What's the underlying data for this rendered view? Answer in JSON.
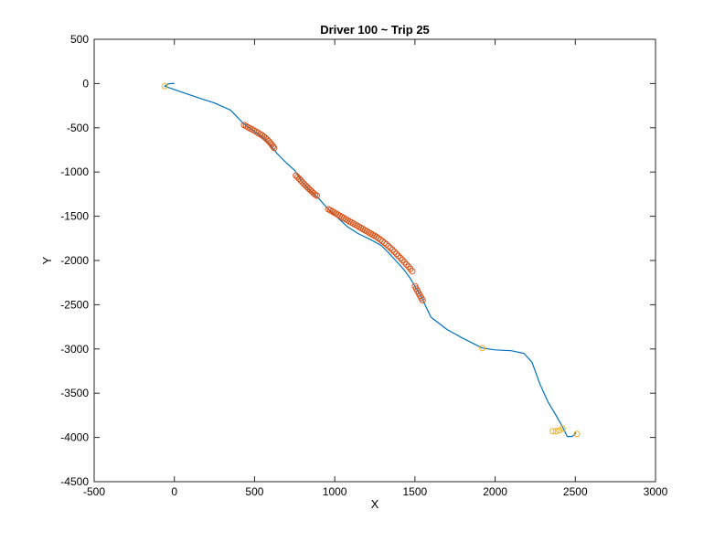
{
  "chart_data": {
    "type": "scatter",
    "title": "Driver 100 ~ Trip 25",
    "xlabel": "X",
    "ylabel": "Y",
    "xlim": [
      -500,
      3000
    ],
    "ylim": [
      -4500,
      500
    ],
    "xticks": [
      -500,
      0,
      500,
      1000,
      1500,
      2000,
      2500,
      3000
    ],
    "yticks": [
      -4500,
      -4000,
      -3500,
      -3000,
      -2500,
      -2000,
      -1500,
      -1000,
      -500,
      0,
      500
    ],
    "grid": false,
    "colors": {
      "path": "#0072bd",
      "orange_markers": "#d95319",
      "yellow_markers": "#edb120"
    },
    "series": [
      {
        "mark": "line",
        "points": [
          [
            0,
            0
          ],
          [
            -20,
            0
          ],
          [
            -40,
            -5
          ],
          [
            -60,
            -30
          ],
          [
            50,
            -100
          ],
          [
            150,
            -160
          ],
          [
            250,
            -220
          ],
          [
            350,
            -300
          ],
          [
            430,
            -450
          ],
          [
            500,
            -540
          ],
          [
            560,
            -620
          ],
          [
            600,
            -700
          ],
          [
            640,
            -790
          ],
          [
            700,
            -900
          ],
          [
            750,
            -980
          ],
          [
            800,
            -1120
          ],
          [
            850,
            -1220
          ],
          [
            900,
            -1300
          ],
          [
            960,
            -1420
          ],
          [
            1020,
            -1520
          ],
          [
            1080,
            -1620
          ],
          [
            1150,
            -1700
          ],
          [
            1220,
            -1760
          ],
          [
            1290,
            -1830
          ],
          [
            1340,
            -1920
          ],
          [
            1380,
            -2000
          ],
          [
            1430,
            -2100
          ],
          [
            1470,
            -2200
          ],
          [
            1510,
            -2320
          ],
          [
            1550,
            -2450
          ],
          [
            1600,
            -2640
          ],
          [
            1700,
            -2780
          ],
          [
            1800,
            -2880
          ],
          [
            1920,
            -2990
          ],
          [
            2000,
            -3010
          ],
          [
            2100,
            -3020
          ],
          [
            2180,
            -3050
          ],
          [
            2230,
            -3150
          ],
          [
            2280,
            -3400
          ],
          [
            2330,
            -3600
          ],
          [
            2380,
            -3750
          ],
          [
            2420,
            -3880
          ],
          [
            2450,
            -3990
          ],
          [
            2480,
            -3990
          ],
          [
            2500,
            -3960
          ],
          [
            2500,
            -3940
          ]
        ]
      },
      {
        "mark": "circle",
        "points": [
          [
            435,
            -470
          ],
          [
            448,
            -482
          ],
          [
            460,
            -495
          ],
          [
            472,
            -507
          ],
          [
            485,
            -518
          ],
          [
            497,
            -530
          ],
          [
            510,
            -545
          ],
          [
            522,
            -558
          ],
          [
            535,
            -572
          ],
          [
            547,
            -585
          ],
          [
            558,
            -600
          ],
          [
            568,
            -615
          ],
          [
            578,
            -632
          ],
          [
            588,
            -650
          ],
          [
            598,
            -670
          ],
          [
            607,
            -690
          ],
          [
            615,
            -710
          ],
          [
            622,
            -728
          ],
          [
            758,
            -1040
          ],
          [
            768,
            -1058
          ],
          [
            778,
            -1076
          ],
          [
            788,
            -1095
          ],
          [
            798,
            -1115
          ],
          [
            808,
            -1135
          ],
          [
            818,
            -1152
          ],
          [
            828,
            -1170
          ],
          [
            838,
            -1188
          ],
          [
            848,
            -1205
          ],
          [
            858,
            -1222
          ],
          [
            868,
            -1240
          ],
          [
            878,
            -1255
          ],
          [
            888,
            -1268
          ],
          [
            960,
            -1420
          ],
          [
            972,
            -1432
          ],
          [
            984,
            -1445
          ],
          [
            996,
            -1458
          ],
          [
            1008,
            -1470
          ],
          [
            1020,
            -1482
          ],
          [
            1032,
            -1495
          ],
          [
            1044,
            -1508
          ],
          [
            1056,
            -1520
          ],
          [
            1068,
            -1533
          ],
          [
            1080,
            -1545
          ],
          [
            1092,
            -1558
          ],
          [
            1104,
            -1570
          ],
          [
            1116,
            -1582
          ],
          [
            1128,
            -1595
          ],
          [
            1140,
            -1607
          ],
          [
            1152,
            -1620
          ],
          [
            1164,
            -1632
          ],
          [
            1176,
            -1645
          ],
          [
            1188,
            -1658
          ],
          [
            1200,
            -1670
          ],
          [
            1212,
            -1683
          ],
          [
            1224,
            -1695
          ],
          [
            1236,
            -1708
          ],
          [
            1248,
            -1720
          ],
          [
            1260,
            -1733
          ],
          [
            1272,
            -1748
          ],
          [
            1285,
            -1765
          ],
          [
            1297,
            -1782
          ],
          [
            1310,
            -1800
          ],
          [
            1322,
            -1818
          ],
          [
            1335,
            -1838
          ],
          [
            1347,
            -1858
          ],
          [
            1360,
            -1880
          ],
          [
            1372,
            -1902
          ],
          [
            1385,
            -1925
          ],
          [
            1397,
            -1948
          ],
          [
            1410,
            -1972
          ],
          [
            1422,
            -1995
          ],
          [
            1435,
            -2020
          ],
          [
            1447,
            -2045
          ],
          [
            1460,
            -2070
          ],
          [
            1472,
            -2096
          ],
          [
            1484,
            -2122
          ],
          [
            1500,
            -2290
          ],
          [
            1508,
            -2318
          ],
          [
            1516,
            -2345
          ],
          [
            1524,
            -2372
          ],
          [
            1532,
            -2398
          ],
          [
            1540,
            -2425
          ],
          [
            1548,
            -2450
          ]
        ]
      },
      {
        "mark": "circle",
        "points": [
          [
            -60,
            -30
          ],
          [
            1920,
            -2990
          ],
          [
            2360,
            -3930
          ],
          [
            2380,
            -3930
          ],
          [
            2400,
            -3920
          ],
          [
            2420,
            -3900
          ],
          [
            2510,
            -3960
          ]
        ]
      }
    ]
  }
}
